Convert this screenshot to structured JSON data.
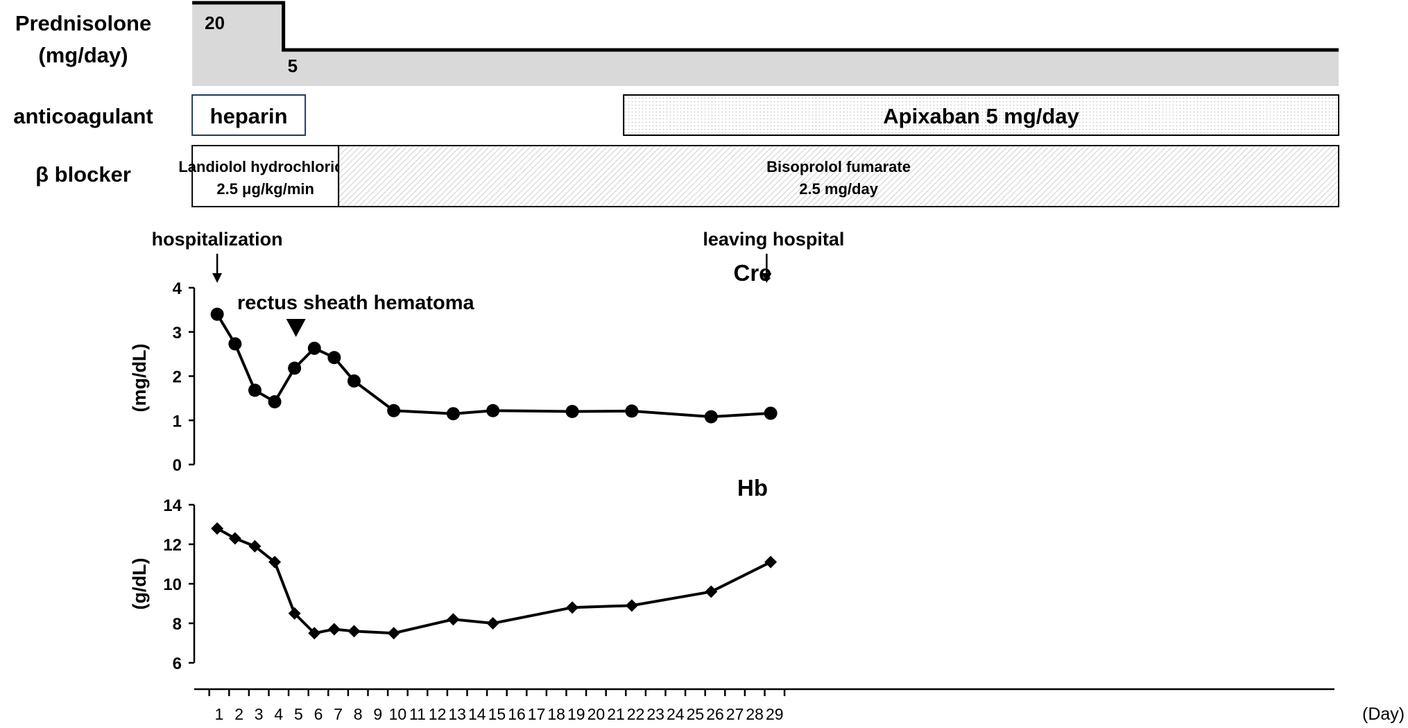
{
  "chart_data": {
    "type": "line",
    "x_unit_label": "(Day)",
    "x_ticks": [
      1,
      2,
      3,
      4,
      5,
      6,
      7,
      8,
      9,
      10,
      11,
      12,
      13,
      14,
      15,
      16,
      17,
      18,
      19,
      20,
      21,
      22,
      23,
      24,
      25,
      26,
      27,
      28,
      29
    ],
    "annotations": {
      "hospitalization": {
        "label": "hospitalization",
        "day": 0.9
      },
      "leaving": {
        "label": "leaving hospital",
        "day": 28.6
      },
      "hematoma": {
        "label": "rectus sheath hematoma",
        "day": 4.8
      }
    },
    "treatment": {
      "prednisolone": {
        "row_label_1": "Prednisolone",
        "row_label_2": "(mg/day)",
        "segments": [
          {
            "label": "20",
            "dose": 20,
            "start_day": 0.9,
            "end_day": 4.1
          },
          {
            "label": "5",
            "dose": 5,
            "start_day": 4.1,
            "end_day": 30
          }
        ]
      },
      "anticoagulant": {
        "row_label": "anticoagulant",
        "segments": [
          {
            "label": "heparin",
            "start_day": 0.9,
            "end_day": 5.2,
            "fill": "none"
          },
          {
            "label": "Apixaban 5 mg/day",
            "start_day": 20.9,
            "end_day": 30,
            "fill": "dots"
          }
        ]
      },
      "beta_blocker": {
        "row_label": "β blocker",
        "segments": [
          {
            "label_1": "Landiolol hydrochloride",
            "label_2": "2.5 μg/kg/min",
            "start_day": 0.9,
            "end_day": 6.6,
            "fill": "none"
          },
          {
            "label_1": "Bisoprolol fumarate",
            "label_2": "2.5 mg/day",
            "start_day": 6.6,
            "end_day": 30,
            "fill": "hatch"
          }
        ]
      }
    },
    "panels": [
      {
        "id": "cre",
        "title": "Cre",
        "ylabel": "(mg/dL)",
        "ylim": [
          0,
          4
        ],
        "yticks": [
          0,
          1,
          2,
          3,
          4
        ],
        "marker": "circle",
        "series": [
          {
            "x": [
              0.9,
              1.8,
              2.8,
              3.8,
              4.8,
              5.8,
              6.8,
              7.8,
              9.8,
              12.8,
              14.8,
              18.8,
              21.8,
              25.8,
              28.8
            ],
            "values": [
              3.4,
              2.73,
              1.68,
              1.42,
              2.18,
              2.63,
              2.42,
              1.89,
              1.22,
              1.15,
              1.22,
              1.2,
              1.21,
              1.08,
              1.16
            ]
          }
        ]
      },
      {
        "id": "hb",
        "title": "Hb",
        "ylabel": "(g/dL)",
        "ylim": [
          6,
          14
        ],
        "yticks": [
          6,
          8,
          10,
          12,
          14
        ],
        "marker": "diamond",
        "series": [
          {
            "x": [
              0.9,
              1.8,
              2.8,
              3.8,
              4.8,
              5.8,
              6.8,
              7.8,
              9.8,
              12.8,
              14.8,
              18.8,
              21.8,
              25.8,
              28.8
            ],
            "values": [
              12.8,
              12.3,
              11.9,
              11.1,
              8.5,
              7.5,
              7.7,
              7.6,
              7.5,
              8.2,
              8.0,
              8.8,
              8.9,
              9.6,
              11.1
            ]
          }
        ]
      }
    ],
    "colors": {
      "line": "#000000",
      "prednisolone_fill": "#d9d9d9",
      "heparin_border": "#1f3864",
      "hatch": "#cfcfcf",
      "dots": "#bdbdbd"
    }
  }
}
